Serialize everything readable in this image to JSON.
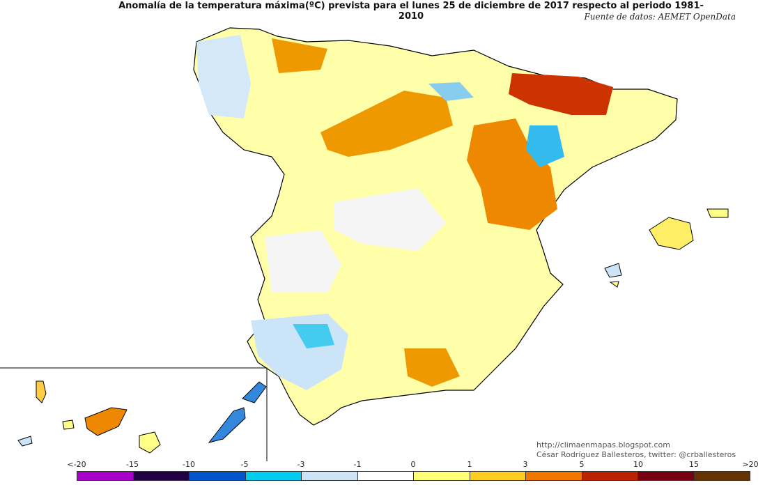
{
  "title": "Anomalía de la temperatura máxima(ºC) prevista para el lunes 25 de diciembre de 2017 respecto al periodo 1981-2010",
  "source": "Fuente de datos: AEMET OpenData",
  "credits": {
    "url": "http://climaenmapas.blogspot.com",
    "author": "César Rodríguez Ballesteros, twitter: @crballesteros"
  },
  "legend": {
    "ticks": [
      "<-20",
      "-15",
      "-10",
      "-5",
      "-3",
      "-1",
      "0",
      "1",
      "3",
      "5",
      "10",
      "15",
      ">20"
    ],
    "colors": [
      "#dd66ee",
      "#aa00cc",
      "#220044",
      "#0055cc",
      "#00ccee",
      "#cce4f8",
      "#ffffff",
      "#ffff77",
      "#ffcc22",
      "#ee7700",
      "#bb2200",
      "#770011",
      "#663300"
    ]
  },
  "palette": {
    "sea": "#ffffff",
    "border": "#000000",
    "land_base": "#ffffaa"
  }
}
